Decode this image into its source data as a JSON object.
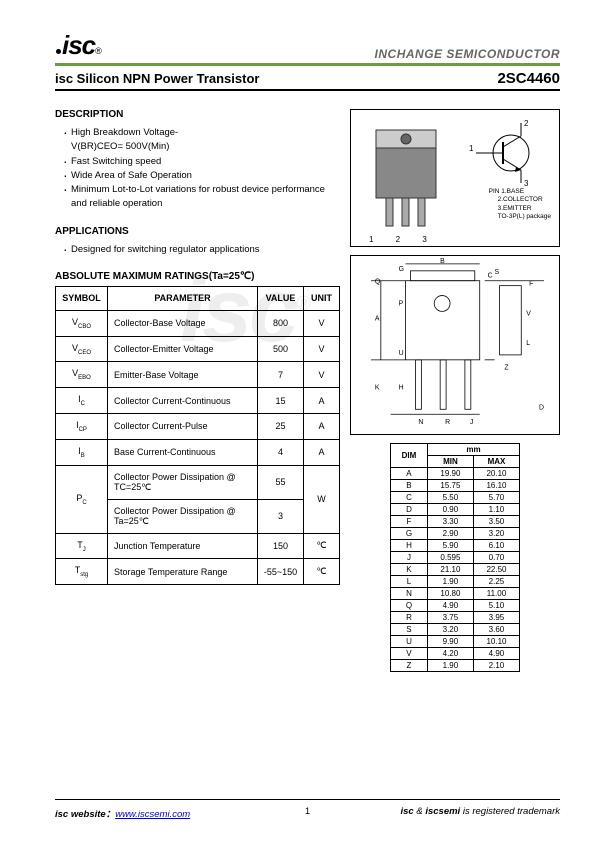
{
  "header": {
    "logo_text": "isc",
    "brand": "INCHANGE SEMICONDUCTOR",
    "title": "isc Silicon NPN Power Transistor",
    "part_number": "2SC4460",
    "green_line_color": "#6b9e3f"
  },
  "description": {
    "heading": "DESCRIPTION",
    "items": [
      "High Breakdown Voltage-",
      "Fast Switching speed",
      "Wide Area of Safe Operation",
      "Minimum Lot-to-Lot variations for robust device performance and reliable operation"
    ],
    "sub_item": "V(BR)CEO= 500V(Min)"
  },
  "applications": {
    "heading": "APPLICATIONS",
    "items": [
      "Designed for switching regulator applications"
    ]
  },
  "ratings": {
    "heading": "ABSOLUTE MAXIMUM RATINGS(Ta=25℃)",
    "columns": [
      "SYMBOL",
      "PARAMETER",
      "VALUE",
      "UNIT"
    ],
    "rows": [
      {
        "sym": "V",
        "sub": "CBO",
        "param": "Collector-Base Voltage",
        "value": "800",
        "unit": "V"
      },
      {
        "sym": "V",
        "sub": "CEO",
        "param": "Collector-Emitter Voltage",
        "value": "500",
        "unit": "V"
      },
      {
        "sym": "V",
        "sub": "EBO",
        "param": "Emitter-Base Voltage",
        "value": "7",
        "unit": "V"
      },
      {
        "sym": "I",
        "sub": "C",
        "param": "Collector Current-Continuous",
        "value": "15",
        "unit": "A"
      },
      {
        "sym": "I",
        "sub": "CP",
        "param": "Collector Current-Pulse",
        "value": "25",
        "unit": "A"
      },
      {
        "sym": "I",
        "sub": "B",
        "param": "Base Current-Continuous",
        "value": "4",
        "unit": "A"
      },
      {
        "sym": "P",
        "sub": "C",
        "param": "Collector Power Dissipation @ TC=25℃",
        "value": "55",
        "unit": "W",
        "rowspan_group": "pc"
      },
      {
        "sym": "",
        "sub": "",
        "param": "Collector Power Dissipation @ Ta=25℃",
        "value": "3",
        "unit": "",
        "rowspan_group": "pc"
      },
      {
        "sym": "T",
        "sub": "J",
        "param": "Junction Temperature",
        "value": "150",
        "unit": "℃"
      },
      {
        "sym": "T",
        "sub": "stg",
        "param": "Storage Temperature Range",
        "value": "-55~150",
        "unit": "℃"
      }
    ]
  },
  "package_diagram": {
    "pins_label": "1   2   3",
    "pin_desc_heading": "PIN",
    "pin_desc": [
      "1.BASE",
      "2.COLLECTOR",
      "3.EMITTER"
    ],
    "package_name": "TO-3P(L) package",
    "schematic_pins": {
      "p1": "1",
      "p2": "2",
      "p3": "3"
    }
  },
  "dimensions": {
    "header": "mm",
    "cols": [
      "DIM",
      "MIN",
      "MAX"
    ],
    "rows": [
      [
        "A",
        "19.90",
        "20.10"
      ],
      [
        "B",
        "15.75",
        "16.10"
      ],
      [
        "C",
        "5.50",
        "5.70"
      ],
      [
        "D",
        "0.90",
        "1.10"
      ],
      [
        "F",
        "3.30",
        "3.50"
      ],
      [
        "G",
        "2.90",
        "3.20"
      ],
      [
        "H",
        "5.90",
        "6.10"
      ],
      [
        "J",
        "0.595",
        "0.70"
      ],
      [
        "K",
        "21.10",
        "22.50"
      ],
      [
        "L",
        "1.90",
        "2.25"
      ],
      [
        "N",
        "10.80",
        "11.00"
      ],
      [
        "Q",
        "4.90",
        "5.10"
      ],
      [
        "R",
        "3.75",
        "3.95"
      ],
      [
        "S",
        "3.20",
        "3.60"
      ],
      [
        "U",
        "9.90",
        "10.10"
      ],
      [
        "V",
        "4.20",
        "4.90"
      ],
      [
        "Z",
        "1.90",
        "2.10"
      ]
    ]
  },
  "footer": {
    "website_label": "isc website：",
    "website_url": "www.iscsemi.com",
    "page": "1",
    "trademark": "isc & iscsemi is registered trademark"
  }
}
